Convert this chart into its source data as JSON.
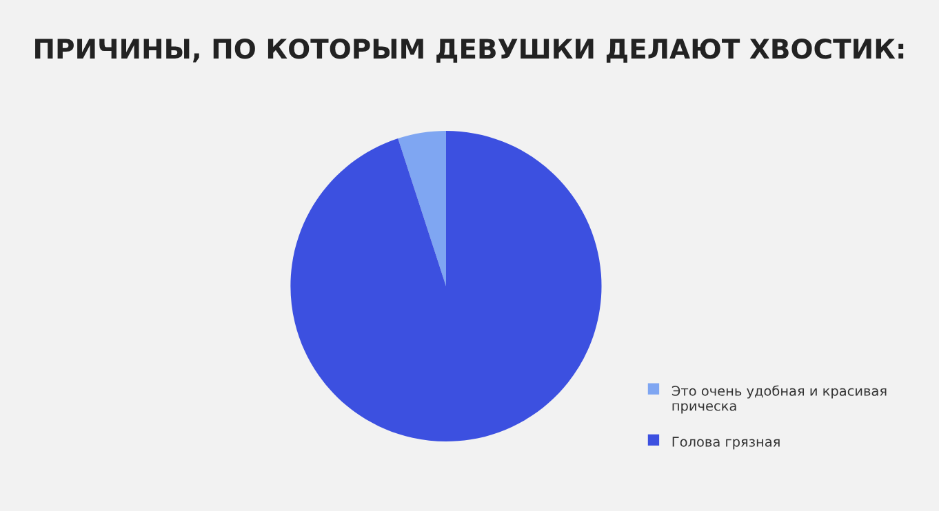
{
  "chart_data": {
    "type": "pie",
    "title": "ПРИЧИНЫ, ПО КОТОРЫМ ДЕВУШКИ ДЕЛАЮТ ХВОСТИК:",
    "categories": [
      "Это очень удобная и красивая прическа",
      "Голова грязная"
    ],
    "values": [
      5,
      95
    ],
    "colors": [
      "#7fa6f2",
      "#3c50e0"
    ],
    "legend": "bottom right"
  }
}
